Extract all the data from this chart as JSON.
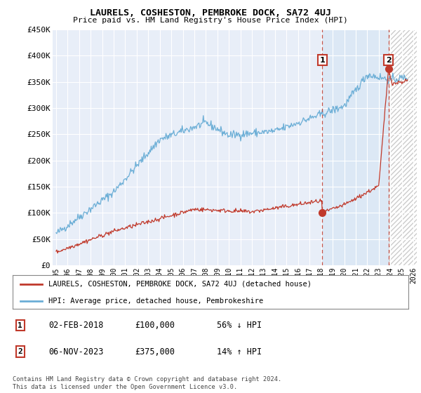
{
  "title": "LAURELS, COSHESTON, PEMBROKE DOCK, SA72 4UJ",
  "subtitle": "Price paid vs. HM Land Registry's House Price Index (HPI)",
  "ylabel_ticks": [
    "£0",
    "£50K",
    "£100K",
    "£150K",
    "£200K",
    "£250K",
    "£300K",
    "£350K",
    "£400K",
    "£450K"
  ],
  "ylim": [
    0,
    450000
  ],
  "xlim_start": 1994.7,
  "xlim_end": 2026.3,
  "hpi_color": "#6baed6",
  "price_color": "#c0392b",
  "transaction1": {
    "date": "02-FEB-2018",
    "price": 100000,
    "label": "1",
    "x": 2018.09
  },
  "transaction2": {
    "date": "06-NOV-2023",
    "price": 375000,
    "label": "2",
    "x": 2023.84
  },
  "legend_property": "LAURELS, COSHESTON, PEMBROKE DOCK, SA72 4UJ (detached house)",
  "legend_hpi": "HPI: Average price, detached house, Pembrokeshire",
  "footer": "Contains HM Land Registry data © Crown copyright and database right 2024.\nThis data is licensed under the Open Government Licence v3.0.",
  "background_color": "#e8eef8",
  "shade_start": 2018.09,
  "shade_end": 2023.84,
  "hatch_start": 2023.84
}
